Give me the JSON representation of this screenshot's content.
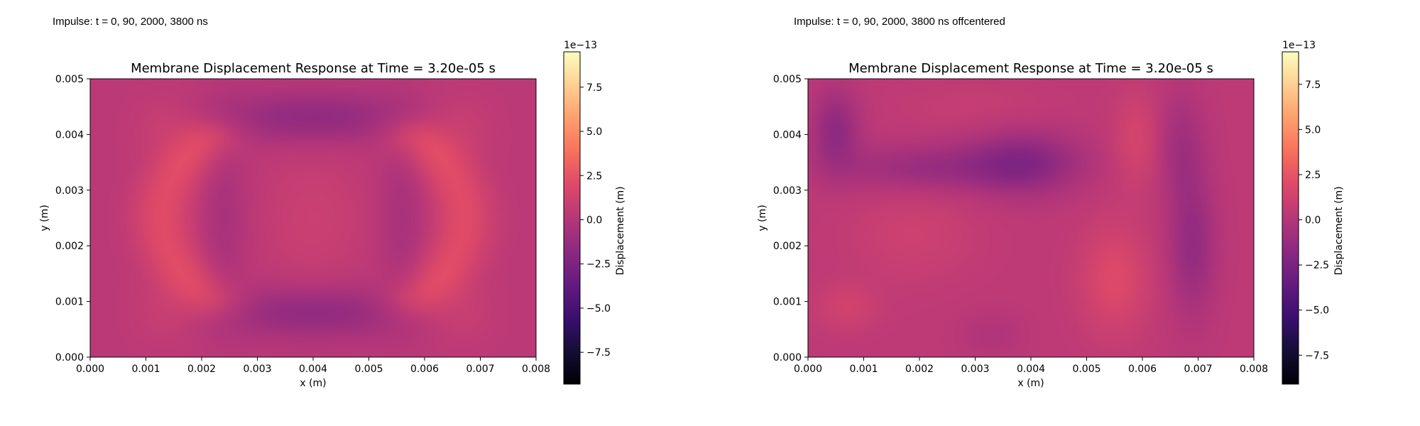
{
  "panels": [
    {
      "caption": "Impulse: t = 0, 90, 2000, 3800 ns",
      "chart_data": {
        "type": "heatmap",
        "title": "Membrane Displacement Response at Time = 3.20e-05 s",
        "xlabel": "x (m)",
        "ylabel": "y (m)",
        "xlim": [
          0.0,
          0.008
        ],
        "ylim": [
          0.0,
          0.005
        ],
        "x_ticks": [
          "0.000",
          "0.001",
          "0.002",
          "0.003",
          "0.004",
          "0.005",
          "0.006",
          "0.007",
          "0.008"
        ],
        "y_ticks": [
          "0.000",
          "0.001",
          "0.002",
          "0.003",
          "0.004",
          "0.005"
        ],
        "colormap": "magma",
        "colorbar": {
          "label": "Displacement (m)",
          "offset_text": "1e−13",
          "range": [
            -9.3,
            9.5
          ],
          "ticks": [
            7.5,
            5.0,
            2.5,
            0.0,
            -2.5,
            -5.0,
            -7.5
          ],
          "tick_labels": [
            "7.5",
            "5.0",
            "2.5",
            "0.0",
            "−2.5",
            "−5.0",
            "−7.5"
          ]
        },
        "field_description_values": {
          "base": 0.3,
          "features": [
            {
              "kind": "arc",
              "cx": 0.0045,
              "cy": 0.0025,
              "rx": 0.0032,
              "ry": 0.0021,
              "tmin": 2.4,
              "tmax": 3.9,
              "amp": 1.8
            },
            {
              "kind": "arc",
              "cx": 0.0035,
              "cy": 0.0025,
              "rx": 0.0032,
              "ry": 0.0021,
              "tmin": -0.75,
              "tmax": 0.75,
              "amp": 1.8
            },
            {
              "kind": "blob",
              "x": 0.0014,
              "y": 0.0042,
              "sx": 0.0005,
              "sy": 0.0004,
              "amp": 0.8
            },
            {
              "kind": "blob",
              "x": 0.0014,
              "y": 0.0008,
              "sx": 0.0005,
              "sy": 0.0004,
              "amp": 0.8
            },
            {
              "kind": "blob",
              "x": 0.0066,
              "y": 0.0042,
              "sx": 0.0005,
              "sy": 0.0004,
              "amp": 0.8
            },
            {
              "kind": "blob",
              "x": 0.0066,
              "y": 0.0008,
              "sx": 0.0005,
              "sy": 0.0004,
              "amp": 0.8
            },
            {
              "kind": "blob",
              "x": 0.004,
              "y": 0.0043,
              "sx": 0.0014,
              "sy": 0.00033,
              "amp": -1.9
            },
            {
              "kind": "blob",
              "x": 0.004,
              "y": 0.0008,
              "sx": 0.0014,
              "sy": 0.00033,
              "amp": -1.9
            },
            {
              "kind": "blob",
              "x": 0.004,
              "y": 0.0025,
              "sx": 0.0007,
              "sy": 0.0009,
              "amp": 0.7
            },
            {
              "kind": "blob",
              "x": 0.0024,
              "y": 0.0025,
              "sx": 0.0003,
              "sy": 0.0011,
              "amp": -0.9
            },
            {
              "kind": "blob",
              "x": 0.0056,
              "y": 0.0025,
              "sx": 0.0003,
              "sy": 0.0011,
              "amp": -0.9
            }
          ]
        }
      }
    },
    {
      "caption": "Impulse: t = 0, 90, 2000, 3800 ns offcentered",
      "chart_data": {
        "type": "heatmap",
        "title": "Membrane Displacement Response at Time = 3.20e-05 s",
        "xlabel": "x (m)",
        "ylabel": "y (m)",
        "xlim": [
          0.0,
          0.008
        ],
        "ylim": [
          0.0,
          0.005
        ],
        "x_ticks": [
          "0.000",
          "0.001",
          "0.002",
          "0.003",
          "0.004",
          "0.005",
          "0.006",
          "0.007",
          "0.008"
        ],
        "y_ticks": [
          "0.000",
          "0.001",
          "0.002",
          "0.003",
          "0.004",
          "0.005"
        ],
        "colormap": "magma",
        "colorbar": {
          "label": "Displacement (m)",
          "offset_text": "1e−13",
          "range": [
            -9.1,
            9.3
          ],
          "ticks": [
            7.5,
            5.0,
            2.5,
            0.0,
            -2.5,
            -5.0,
            -7.5
          ],
          "tick_labels": [
            "7.5",
            "5.0",
            "2.5",
            "0.0",
            "−2.5",
            "−5.0",
            "−7.5"
          ]
        },
        "field_description_values": {
          "base": 0.4,
          "features": [
            {
              "kind": "blob",
              "x": 0.0039,
              "y": 0.0035,
              "sx": 0.0007,
              "sy": 0.0004,
              "amp": -2.2
            },
            {
              "kind": "blob",
              "x": 0.0022,
              "y": 0.0034,
              "sx": 0.0012,
              "sy": 0.0003,
              "amp": -1.6
            },
            {
              "kind": "blob",
              "x": 0.0005,
              "y": 0.0041,
              "sx": 0.0003,
              "sy": 0.0005,
              "amp": -2.0
            },
            {
              "kind": "blob",
              "x": 0.0069,
              "y": 0.002,
              "sx": 0.0003,
              "sy": 0.0009,
              "amp": -1.8
            },
            {
              "kind": "blob",
              "x": 0.0067,
              "y": 0.0038,
              "sx": 0.0003,
              "sy": 0.0007,
              "amp": -1.2
            },
            {
              "kind": "blob",
              "x": 0.0055,
              "y": 0.0014,
              "sx": 0.00045,
              "sy": 0.0007,
              "amp": 1.5
            },
            {
              "kind": "blob",
              "x": 0.0059,
              "y": 0.0039,
              "sx": 0.0003,
              "sy": 0.0006,
              "amp": 1.1
            },
            {
              "kind": "blob",
              "x": 0.0019,
              "y": 0.0022,
              "sx": 0.0008,
              "sy": 0.0006,
              "amp": 0.7
            },
            {
              "kind": "blob",
              "x": 0.0007,
              "y": 0.0009,
              "sx": 0.0004,
              "sy": 0.0003,
              "amp": 0.9
            },
            {
              "kind": "blob",
              "x": 0.003,
              "y": 0.0045,
              "sx": 0.001,
              "sy": 0.0003,
              "amp": 0.4
            },
            {
              "kind": "blob",
              "x": 0.0033,
              "y": 0.0004,
              "sx": 0.0004,
              "sy": 0.0003,
              "amp": -0.6
            }
          ]
        }
      }
    }
  ]
}
